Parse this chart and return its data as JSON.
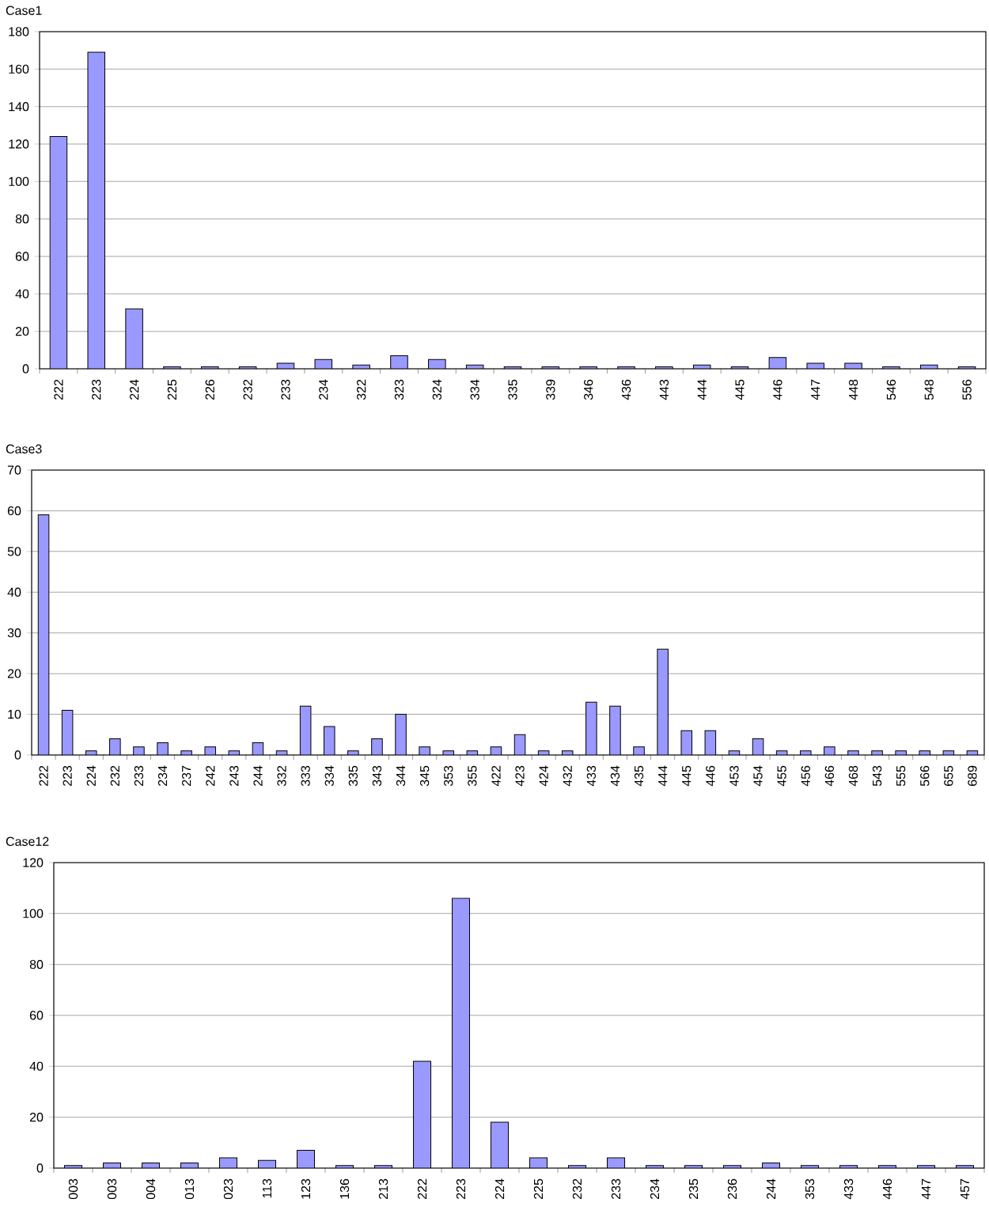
{
  "chart_data": [
    {
      "type": "bar",
      "title": "Case1",
      "color": "#9999ff",
      "grid": "y",
      "ylim": [
        0,
        180
      ],
      "yticks": [
        0,
        20,
        40,
        60,
        80,
        100,
        120,
        140,
        160,
        180
      ],
      "categories": [
        "222",
        "223",
        "224",
        "225",
        "226",
        "232",
        "233",
        "234",
        "322",
        "323",
        "324",
        "334",
        "335",
        "339",
        "346",
        "436",
        "443",
        "444",
        "445",
        "446",
        "447",
        "448",
        "546",
        "548",
        "556"
      ],
      "values": [
        124,
        169,
        32,
        1,
        1,
        1,
        3,
        5,
        2,
        7,
        5,
        2,
        1,
        1,
        1,
        1,
        1,
        2,
        1,
        6,
        3,
        3,
        1,
        2,
        1
      ]
    },
    {
      "type": "bar",
      "title": "Case3",
      "color": "#9999ff",
      "grid": "y",
      "ylim": [
        0,
        70
      ],
      "yticks": [
        0,
        10,
        20,
        30,
        40,
        50,
        60,
        70
      ],
      "categories": [
        "222",
        "223",
        "224",
        "232",
        "233",
        "234",
        "237",
        "242",
        "243",
        "244",
        "332",
        "333",
        "334",
        "335",
        "343",
        "344",
        "345",
        "353",
        "355",
        "422",
        "423",
        "424",
        "432",
        "433",
        "434",
        "435",
        "444",
        "445",
        "446",
        "453",
        "454",
        "455",
        "456",
        "466",
        "468",
        "543",
        "555",
        "566",
        "655",
        "689"
      ],
      "values": [
        59,
        11,
        1,
        4,
        2,
        3,
        1,
        2,
        1,
        3,
        1,
        12,
        7,
        1,
        4,
        10,
        2,
        1,
        1,
        2,
        5,
        1,
        1,
        13,
        12,
        2,
        26,
        6,
        6,
        1,
        4,
        1,
        1,
        2,
        1,
        1,
        1,
        1,
        1,
        1
      ]
    },
    {
      "type": "bar",
      "title": "Case12",
      "color": "#9999ff",
      "grid": "y",
      "ylim": [
        0,
        120
      ],
      "yticks": [
        0,
        20,
        40,
        60,
        80,
        100,
        120
      ],
      "categories": [
        "003",
        "003",
        "004",
        "013",
        "023",
        "113",
        "123",
        "136",
        "213",
        "222",
        "223",
        "224",
        "225",
        "232",
        "233",
        "234",
        "235",
        "236",
        "244",
        "353",
        "433",
        "446",
        "447",
        "457"
      ],
      "values": [
        1,
        2,
        2,
        2,
        4,
        3,
        7,
        1,
        1,
        42,
        106,
        18,
        4,
        1,
        4,
        1,
        1,
        1,
        2,
        1,
        1,
        1,
        1,
        1
      ]
    }
  ]
}
